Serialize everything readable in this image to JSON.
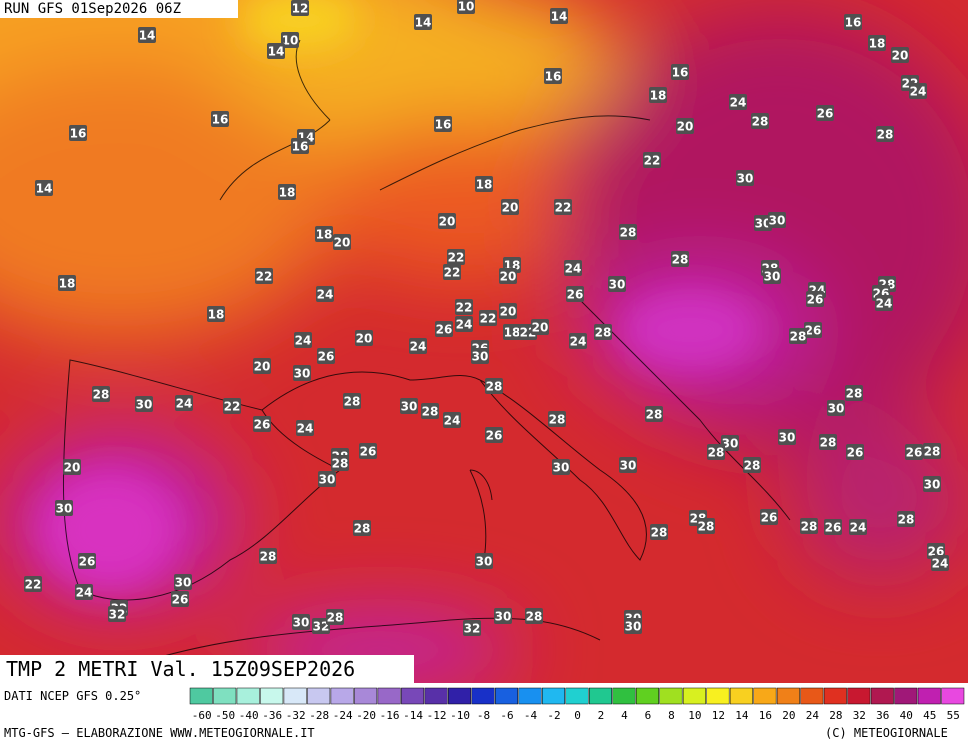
{
  "header": {
    "run": "RUN GFS 01Sep2026 06Z"
  },
  "map_title": "TMP 2 METRI Val. 15Z09SEP2026",
  "isotherm_labels": [
    12,
    10,
    14,
    14,
    14,
    16,
    18,
    20,
    10,
    14,
    16,
    16,
    18,
    22,
    24,
    24,
    16,
    16,
    14,
    16,
    16,
    20,
    28,
    26,
    28,
    22,
    14,
    18,
    18,
    30,
    20,
    22,
    20,
    30,
    30,
    18,
    20,
    28,
    22,
    22,
    18,
    20,
    24,
    28,
    28,
    30,
    18,
    22,
    24,
    30,
    26,
    24,
    26,
    28,
    26,
    24,
    18,
    22,
    24,
    22,
    20,
    26,
    18,
    22,
    20,
    28,
    26,
    28,
    20,
    24,
    24,
    24,
    26,
    30,
    26,
    20,
    30,
    28,
    28,
    30,
    24,
    22,
    28,
    30,
    28,
    24,
    28,
    28,
    28,
    30,
    26,
    24,
    26,
    30,
    30,
    28,
    26,
    28,
    28,
    28,
    28,
    26,
    26,
    28,
    30,
    30,
    30,
    20,
    30,
    30,
    28,
    28,
    28,
    26,
    28,
    26,
    24,
    28,
    28,
    26,
    28,
    26,
    24,
    30,
    22,
    24,
    30,
    26,
    32,
    32,
    30,
    28,
    30,
    30,
    30,
    32,
    28,
    32
  ],
  "footer": {
    "source": "DATI NCEP GFS 0.25°",
    "credit": "MTG-GFS — ELABORAZIONE WWW.METEOGIORNALE.IT",
    "copyright": "(C) METEOGIORNALE"
  },
  "colorbar": {
    "labels": [
      -60,
      -50,
      -40,
      -36,
      -32,
      -28,
      -24,
      -20,
      -16,
      -14,
      -12,
      -10,
      -8,
      -6,
      -4,
      -2,
      0,
      2,
      4,
      6,
      8,
      10,
      12,
      14,
      16,
      20,
      24,
      28,
      32,
      36,
      40,
      45,
      55
    ],
    "colors": [
      "#4fc9a0",
      "#7fe0c0",
      "#a8f0dc",
      "#c8f8ec",
      "#d8e8f8",
      "#c8c8f0",
      "#b8a8e8",
      "#a888d8",
      "#9868c8",
      "#7848b8",
      "#5830a8",
      "#3020a8",
      "#1830c8",
      "#1860e0",
      "#1890f0",
      "#20b8f0",
      "#20d0d0",
      "#20c890",
      "#30c040",
      "#60d020",
      "#a0e020",
      "#d8f020",
      "#f8f020",
      "#f8d020",
      "#f8a818",
      "#f08018",
      "#e85818",
      "#e03020",
      "#c81830",
      "#b01850",
      "#a01878",
      "#c020b0",
      "#e848e0"
    ]
  }
}
